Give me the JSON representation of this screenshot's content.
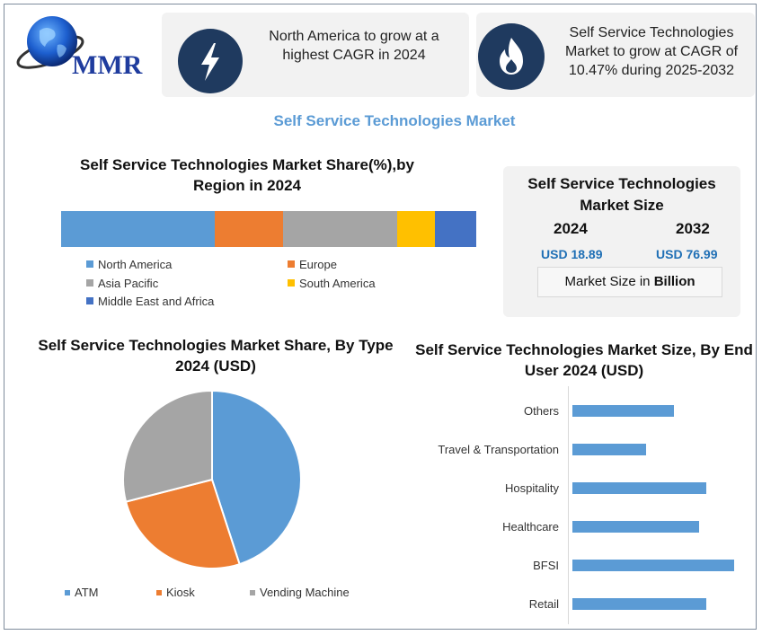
{
  "brand": {
    "logo_text": "MMR"
  },
  "cards": [
    {
      "icon": "lightning-icon",
      "text": "North America to grow at a highest CAGR in 2024"
    },
    {
      "icon": "flame-icon",
      "text": "Self Service Technologies Market to grow at CAGR of 10.47% during 2025-2032"
    }
  ],
  "main_title": "Self Service Technologies Market",
  "market_size": {
    "title": "Self Service Technologies Market Size",
    "year1": "2024",
    "year2": "2032",
    "value1": "USD 18.89",
    "value2": "USD 76.99",
    "unit_prefix": "Market Size in ",
    "unit_bold": "Billion"
  },
  "colors": {
    "blue": "#5b9bd5",
    "orange": "#ed7d31",
    "gray": "#a5a5a5",
    "yellow": "#ffc000",
    "darkblue": "#4472c4",
    "icon_bg": "#1f3a5f"
  },
  "chart_data": [
    {
      "type": "bar",
      "orientation": "horizontal-stacked",
      "title": "Self Service Technologies Market Share(%),by Region in 2024",
      "categories": [
        "North America",
        "Europe",
        "Asia Pacific",
        "South America",
        "Middle East and Africa"
      ],
      "values": [
        37,
        16.5,
        27.5,
        9,
        10
      ],
      "colors": [
        "#5b9bd5",
        "#ed7d31",
        "#a5a5a5",
        "#ffc000",
        "#4472c4"
      ],
      "legend": "bottom"
    },
    {
      "type": "pie",
      "title": "Self Service Technologies Market Share, By Type 2024  (USD)",
      "categories": [
        "ATM",
        "Kiosk",
        "Vending Machine"
      ],
      "values": [
        45,
        26,
        29
      ],
      "colors": [
        "#5b9bd5",
        "#ed7d31",
        "#a5a5a5"
      ],
      "legend": "bottom"
    },
    {
      "type": "bar",
      "orientation": "horizontal",
      "title": "Self Service Technologies Market Size, By End User  2024  (USD)",
      "categories": [
        "Others",
        "Travel & Transportation",
        "Hospitality",
        "Healthcare",
        "BFSI",
        "Retail"
      ],
      "values": [
        113,
        82,
        149,
        141,
        180,
        149
      ],
      "xlim": [
        0,
        185
      ],
      "color": "#5b9bd5"
    }
  ]
}
